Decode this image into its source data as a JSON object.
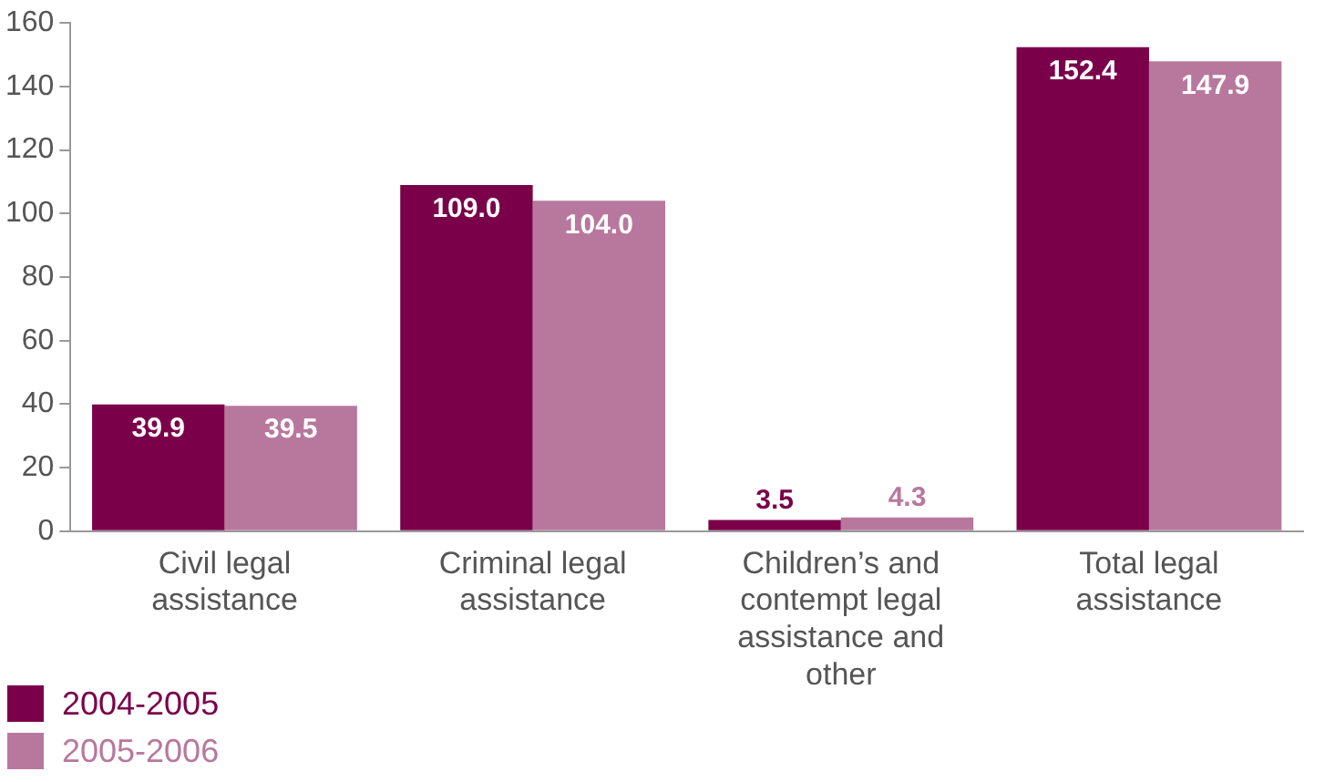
{
  "chart_data": {
    "type": "bar",
    "categories": [
      "Civil legal assistance",
      "Criminal legal assistance",
      "Children’s and contempt legal assistance and other",
      "Total legal assistance"
    ],
    "series": [
      {
        "name": "2004-2005",
        "color": "#7a004a",
        "values": [
          39.9,
          109.0,
          3.5,
          152.4
        ],
        "value_labels": [
          "39.9",
          "109.0",
          "3.5",
          "152.4"
        ]
      },
      {
        "name": "2005-2006",
        "color": "#b8789e",
        "values": [
          39.5,
          104.0,
          4.3,
          147.9
        ],
        "value_labels": [
          "39.5",
          "104.0",
          "4.3",
          "147.9"
        ]
      }
    ],
    "ylim": [
      0,
      160
    ],
    "yticks": [
      0,
      20,
      40,
      60,
      80,
      100,
      120,
      140,
      160
    ],
    "grid": false,
    "legend": "bottom left"
  }
}
